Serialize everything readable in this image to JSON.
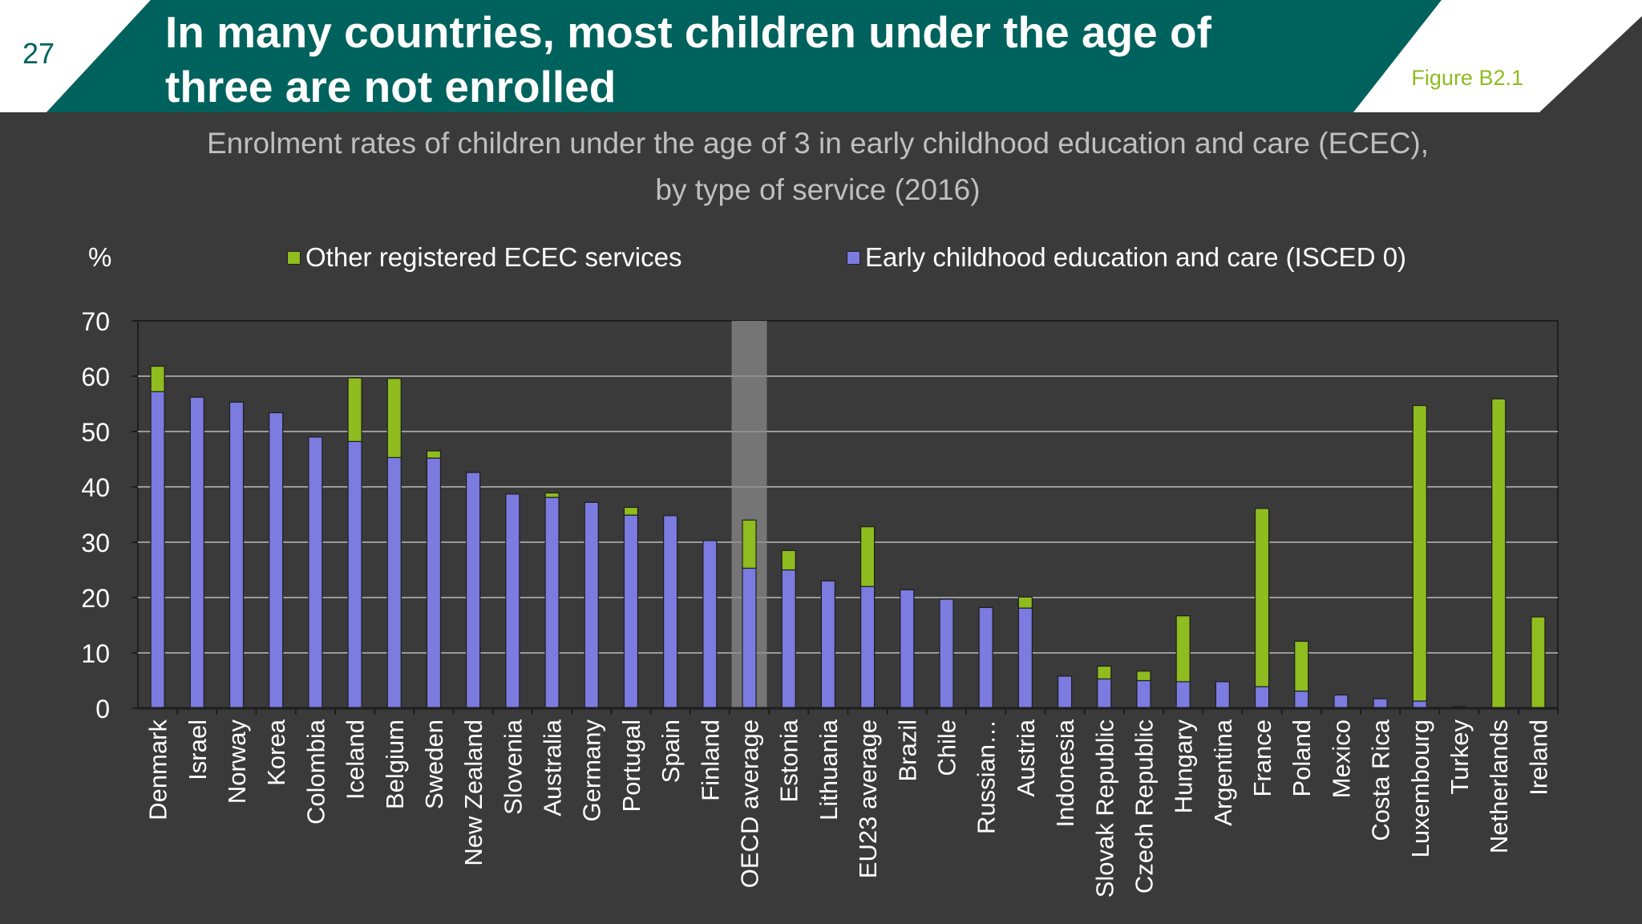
{
  "slide": {
    "page_number": "27",
    "title_line1": "In many countries, most children under the age of",
    "title_line2": "three are not enrolled",
    "figure_label": "Figure B2.1",
    "subtitle_line1": "Enrolment rates of children under the age of 3 in early childhood education and care (ECEC),",
    "subtitle_line2": "by type of service (2016)"
  },
  "colors": {
    "header_bg": "#00625d",
    "white": "#ffffff",
    "isced": "#7b7be0",
    "other": "#8fbc1f",
    "highlight": "#8a8a8a"
  },
  "chart_data": {
    "type": "bar",
    "stacked": true,
    "ylabel": "%",
    "ylim": [
      0,
      70
    ],
    "yticks": [
      0,
      10,
      20,
      30,
      40,
      50,
      60,
      70
    ],
    "grid": true,
    "legend_position": "top",
    "highlighted_category": "OECD average",
    "categories": [
      "Denmark",
      "Israel",
      "Norway",
      "Korea",
      "Colombia",
      "Iceland",
      "Belgium",
      "Sweden",
      "New Zealand",
      "Slovenia",
      "Australia",
      "Germany",
      "Portugal",
      "Spain",
      "Finland",
      "OECD average",
      "Estonia",
      "Lithuania",
      "EU23 average",
      "Brazil",
      "Chile",
      "Russian…",
      "Austria",
      "Indonesia",
      "Slovak Republic",
      "Czech Republic",
      "Hungary",
      "Argentina",
      "France",
      "Poland",
      "Mexico",
      "Costa Rica",
      "Luxembourg",
      "Turkey",
      "Netherlands",
      "Ireland"
    ],
    "series": [
      {
        "name": "Early childhood education and care (ISCED 0)",
        "values": [
          57.2,
          56.2,
          55.3,
          53.4,
          49.0,
          48.2,
          45.3,
          45.2,
          42.6,
          38.7,
          38.1,
          37.2,
          34.9,
          34.8,
          30.3,
          25.3,
          25.0,
          23.0,
          22.0,
          21.4,
          19.7,
          18.2,
          18.1,
          5.8,
          5.3,
          5.0,
          4.8,
          4.8,
          3.9,
          3.1,
          2.4,
          1.7,
          1.3,
          0.3,
          0.0,
          0.0
        ]
      },
      {
        "name": "Other registered ECEC services",
        "values": [
          4.6,
          0,
          0,
          0,
          0,
          11.5,
          14.3,
          1.3,
          0,
          0,
          0.8,
          0,
          1.4,
          0,
          0,
          8.7,
          3.5,
          0,
          10.8,
          0,
          0,
          0,
          2.0,
          0,
          2.3,
          1.7,
          11.9,
          0,
          32.2,
          9.0,
          0,
          0,
          53.4,
          0,
          55.9,
          16.5
        ]
      }
    ]
  }
}
